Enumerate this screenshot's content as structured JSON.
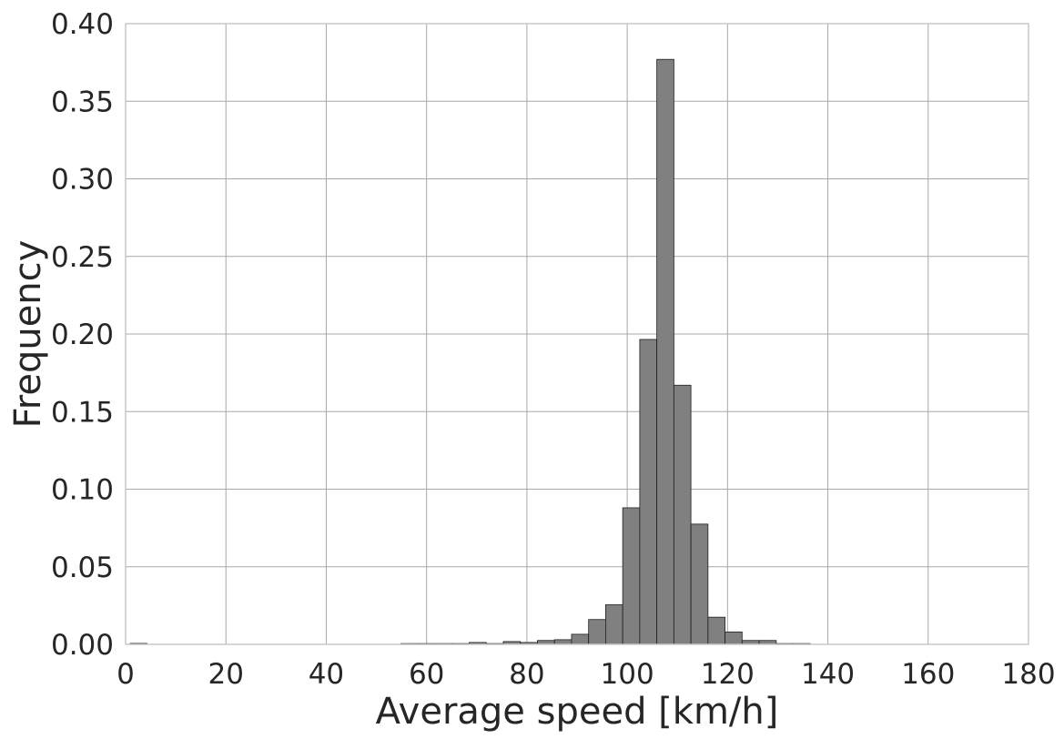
{
  "chart_data": {
    "type": "bar",
    "xlabel": "Average speed [km/h]",
    "ylabel": "Frequency",
    "xlim": [
      0,
      180
    ],
    "ylim": [
      0,
      0.4
    ],
    "xticks": [
      "0",
      "20",
      "40",
      "60",
      "80",
      "100",
      "120",
      "140",
      "160",
      "180"
    ],
    "yticks": [
      "0.00",
      "0.05",
      "0.10",
      "0.15",
      "0.20",
      "0.25",
      "0.30",
      "0.35",
      "0.40"
    ],
    "grid": true,
    "bin_width": 3.4,
    "bins": [
      {
        "x0": 0.9,
        "value": 0.0006
      },
      {
        "x0": 54.9,
        "value": 0.0005
      },
      {
        "x0": 58.3,
        "value": 0.0005
      },
      {
        "x0": 61.7,
        "value": 0.0005
      },
      {
        "x0": 65.1,
        "value": 0.0005
      },
      {
        "x0": 68.5,
        "value": 0.0012
      },
      {
        "x0": 71.9,
        "value": 0.0005
      },
      {
        "x0": 75.3,
        "value": 0.0018
      },
      {
        "x0": 78.7,
        "value": 0.0012
      },
      {
        "x0": 82.1,
        "value": 0.0025
      },
      {
        "x0": 85.5,
        "value": 0.003
      },
      {
        "x0": 88.9,
        "value": 0.0065
      },
      {
        "x0": 92.3,
        "value": 0.016
      },
      {
        "x0": 95.7,
        "value": 0.0255
      },
      {
        "x0": 99.1,
        "value": 0.088
      },
      {
        "x0": 102.5,
        "value": 0.1965
      },
      {
        "x0": 105.9,
        "value": 0.377
      },
      {
        "x0": 109.3,
        "value": 0.167
      },
      {
        "x0": 112.7,
        "value": 0.0775
      },
      {
        "x0": 116.1,
        "value": 0.0175
      },
      {
        "x0": 119.5,
        "value": 0.008
      },
      {
        "x0": 122.9,
        "value": 0.0025
      },
      {
        "x0": 126.3,
        "value": 0.0025
      },
      {
        "x0": 129.7,
        "value": 0.0005
      },
      {
        "x0": 133.1,
        "value": 0.0005
      }
    ]
  }
}
